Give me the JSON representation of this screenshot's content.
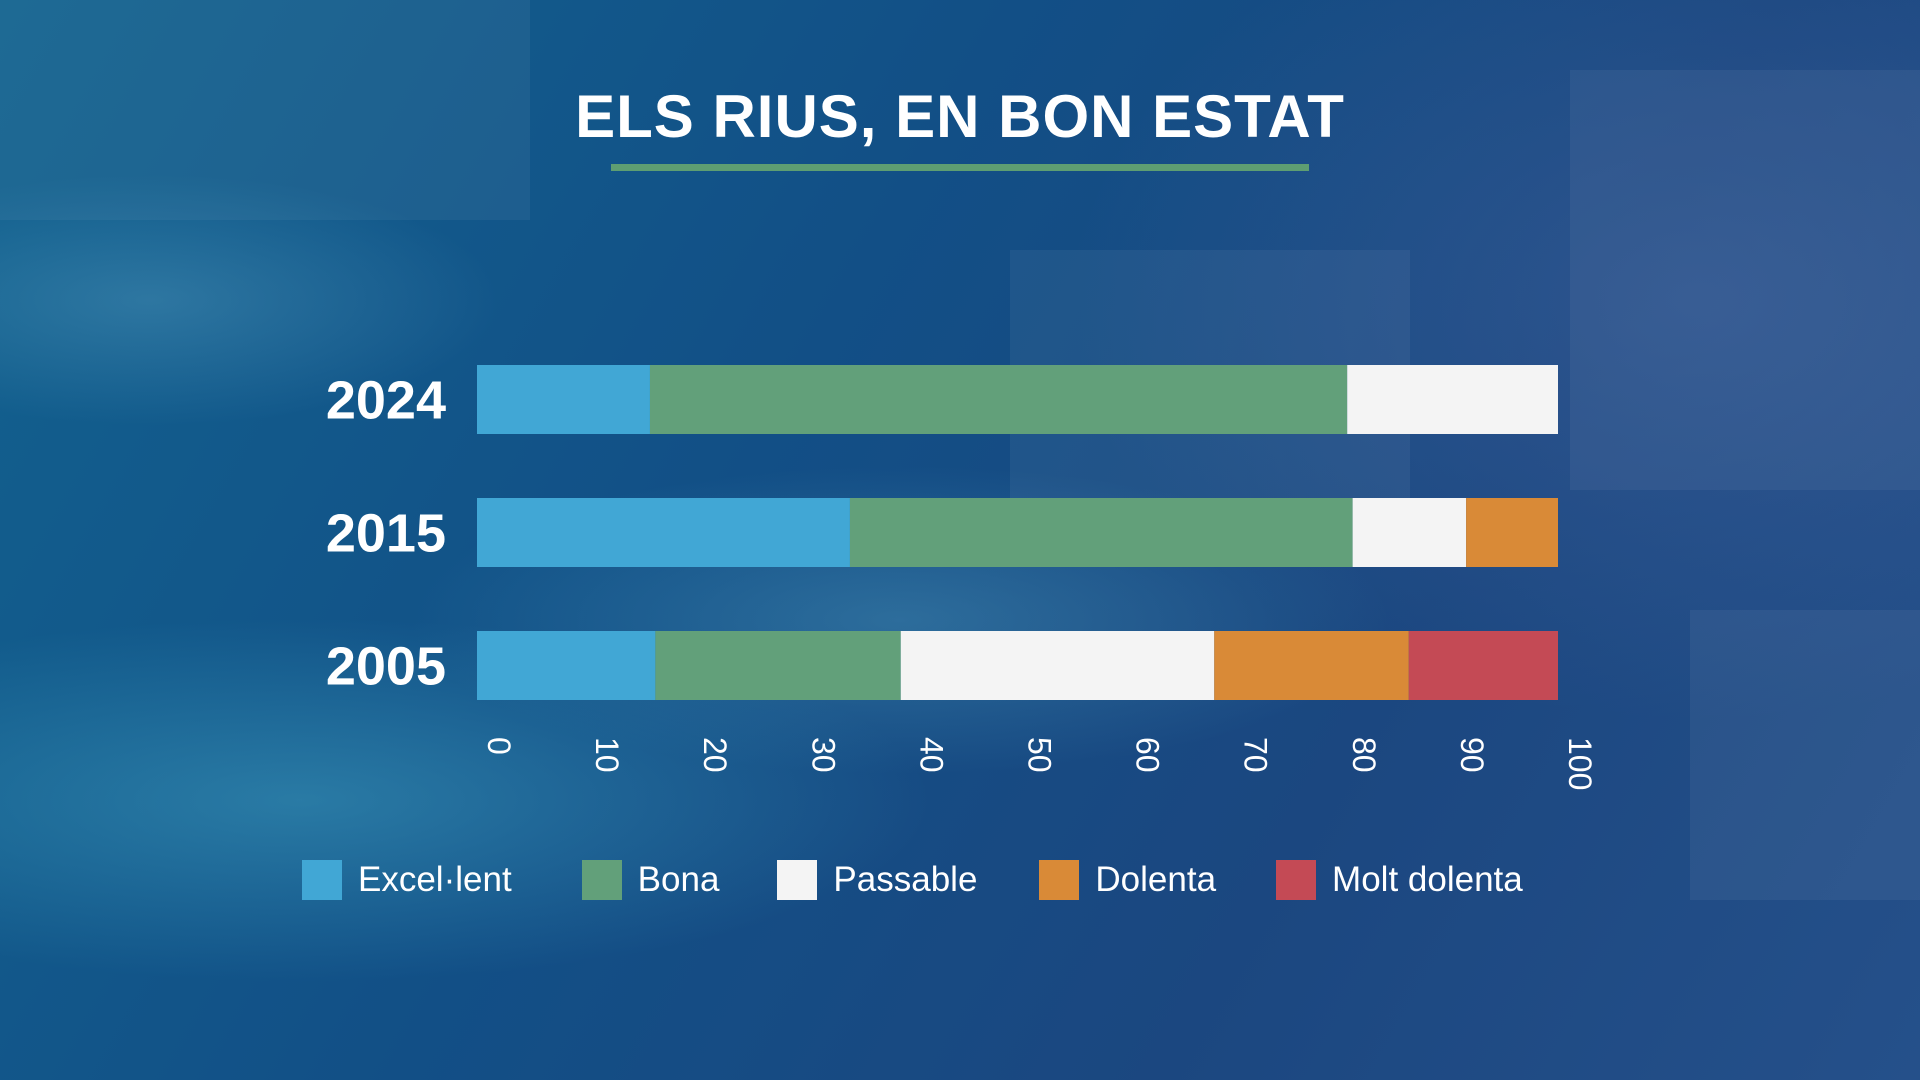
{
  "chart_data": {
    "type": "bar",
    "orientation": "horizontal",
    "stacked": true,
    "title": "ELS RIUS, EN BON ESTAT",
    "categories": [
      "2024",
      "2015",
      "2005"
    ],
    "series": [
      {
        "name": "Excel·lent",
        "color": "#41a7d5",
        "values": [
          16,
          34.5,
          16.5
        ]
      },
      {
        "name": "Bona",
        "color": "#62a07a",
        "values": [
          64.5,
          46.5,
          22.7
        ]
      },
      {
        "name": "Passable",
        "color": "#f4f4f4",
        "values": [
          19.5,
          10.5,
          29
        ]
      },
      {
        "name": "Dolenta",
        "color": "#d98a37",
        "values": [
          0,
          8.5,
          18
        ]
      },
      {
        "name": "Molt dolenta",
        "color": "#c44a55",
        "values": [
          0,
          0,
          13.8
        ]
      }
    ],
    "xlim": [
      0,
      100
    ],
    "xticks": [
      "0",
      "10",
      "20",
      "30",
      "40",
      "50",
      "60",
      "70",
      "80",
      "90",
      "100"
    ],
    "xlabel": "",
    "ylabel": "",
    "grid": false,
    "legend_position": "bottom"
  }
}
